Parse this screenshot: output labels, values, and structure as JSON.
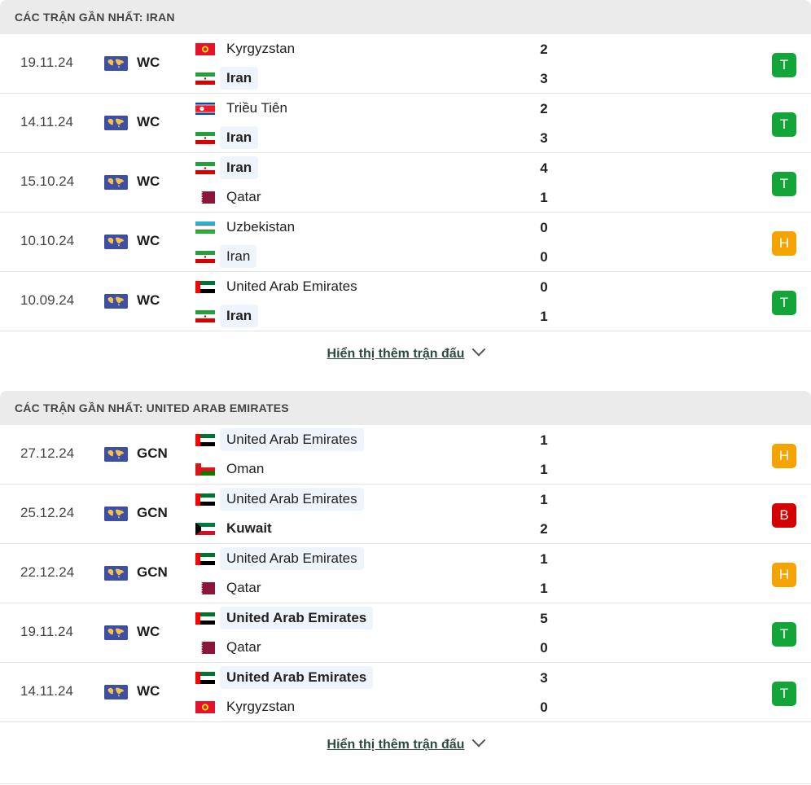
{
  "sections": [
    {
      "title": "CÁC TRẬN GẦN NHẤT: IRAN",
      "more_label": "Hiển thị thêm trận đấu",
      "matches": [
        {
          "date": "19.11.24",
          "comp": "WC",
          "home": {
            "name": "Kyrgyzstan",
            "flag": "kyrgyzstan-flag",
            "bold": false,
            "hl": false
          },
          "away": {
            "name": "Iran",
            "flag": "iran-flag",
            "bold": true,
            "hl": true
          },
          "home_score": "2",
          "away_score": "3",
          "result": "T"
        },
        {
          "date": "14.11.24",
          "comp": "WC",
          "home": {
            "name": "Triều Tiên",
            "flag": "north-korea-flag",
            "bold": false,
            "hl": false
          },
          "away": {
            "name": "Iran",
            "flag": "iran-flag",
            "bold": true,
            "hl": true
          },
          "home_score": "2",
          "away_score": "3",
          "result": "T"
        },
        {
          "date": "15.10.24",
          "comp": "WC",
          "home": {
            "name": "Iran",
            "flag": "iran-flag",
            "bold": true,
            "hl": true
          },
          "away": {
            "name": "Qatar",
            "flag": "qatar-flag",
            "bold": false,
            "hl": false
          },
          "home_score": "4",
          "away_score": "1",
          "result": "T"
        },
        {
          "date": "10.10.24",
          "comp": "WC",
          "home": {
            "name": "Uzbekistan",
            "flag": "uzbekistan-flag",
            "bold": false,
            "hl": false
          },
          "away": {
            "name": "Iran",
            "flag": "iran-flag",
            "bold": false,
            "hl": true
          },
          "home_score": "0",
          "away_score": "0",
          "result": "H"
        },
        {
          "date": "10.09.24",
          "comp": "WC",
          "home": {
            "name": "United Arab Emirates",
            "flag": "uae-flag",
            "bold": false,
            "hl": false
          },
          "away": {
            "name": "Iran",
            "flag": "iran-flag",
            "bold": true,
            "hl": true
          },
          "home_score": "0",
          "away_score": "1",
          "result": "T"
        }
      ]
    },
    {
      "title": "CÁC TRẬN GẦN NHẤT: UNITED ARAB EMIRATES",
      "more_label": "Hiển thị thêm trận đấu",
      "matches": [
        {
          "date": "27.12.24",
          "comp": "GCN",
          "home": {
            "name": "United Arab Emirates",
            "flag": "uae-flag",
            "bold": false,
            "hl": true
          },
          "away": {
            "name": "Oman",
            "flag": "oman-flag",
            "bold": false,
            "hl": false
          },
          "home_score": "1",
          "away_score": "1",
          "result": "H"
        },
        {
          "date": "25.12.24",
          "comp": "GCN",
          "home": {
            "name": "United Arab Emirates",
            "flag": "uae-flag",
            "bold": false,
            "hl": true
          },
          "away": {
            "name": "Kuwait",
            "flag": "kuwait-flag",
            "bold": true,
            "hl": false
          },
          "home_score": "1",
          "away_score": "2",
          "result": "B"
        },
        {
          "date": "22.12.24",
          "comp": "GCN",
          "home": {
            "name": "United Arab Emirates",
            "flag": "uae-flag",
            "bold": false,
            "hl": true
          },
          "away": {
            "name": "Qatar",
            "flag": "qatar-flag",
            "bold": false,
            "hl": false
          },
          "home_score": "1",
          "away_score": "1",
          "result": "H"
        },
        {
          "date": "19.11.24",
          "comp": "WC",
          "home": {
            "name": "United Arab Emirates",
            "flag": "uae-flag",
            "bold": true,
            "hl": true
          },
          "away": {
            "name": "Qatar",
            "flag": "qatar-flag",
            "bold": false,
            "hl": false
          },
          "home_score": "5",
          "away_score": "0",
          "result": "T"
        },
        {
          "date": "14.11.24",
          "comp": "WC",
          "home": {
            "name": "United Arab Emirates",
            "flag": "uae-flag",
            "bold": true,
            "hl": true
          },
          "away": {
            "name": "Kyrgyzstan",
            "flag": "kyrgyzstan-flag",
            "bold": false,
            "hl": false
          },
          "home_score": "3",
          "away_score": "0",
          "result": "T"
        }
      ]
    }
  ],
  "colors": {
    "win": "#13a538",
    "draw": "#f5a300",
    "loss": "#d50000",
    "competition_icon": "#3c4fa3"
  }
}
